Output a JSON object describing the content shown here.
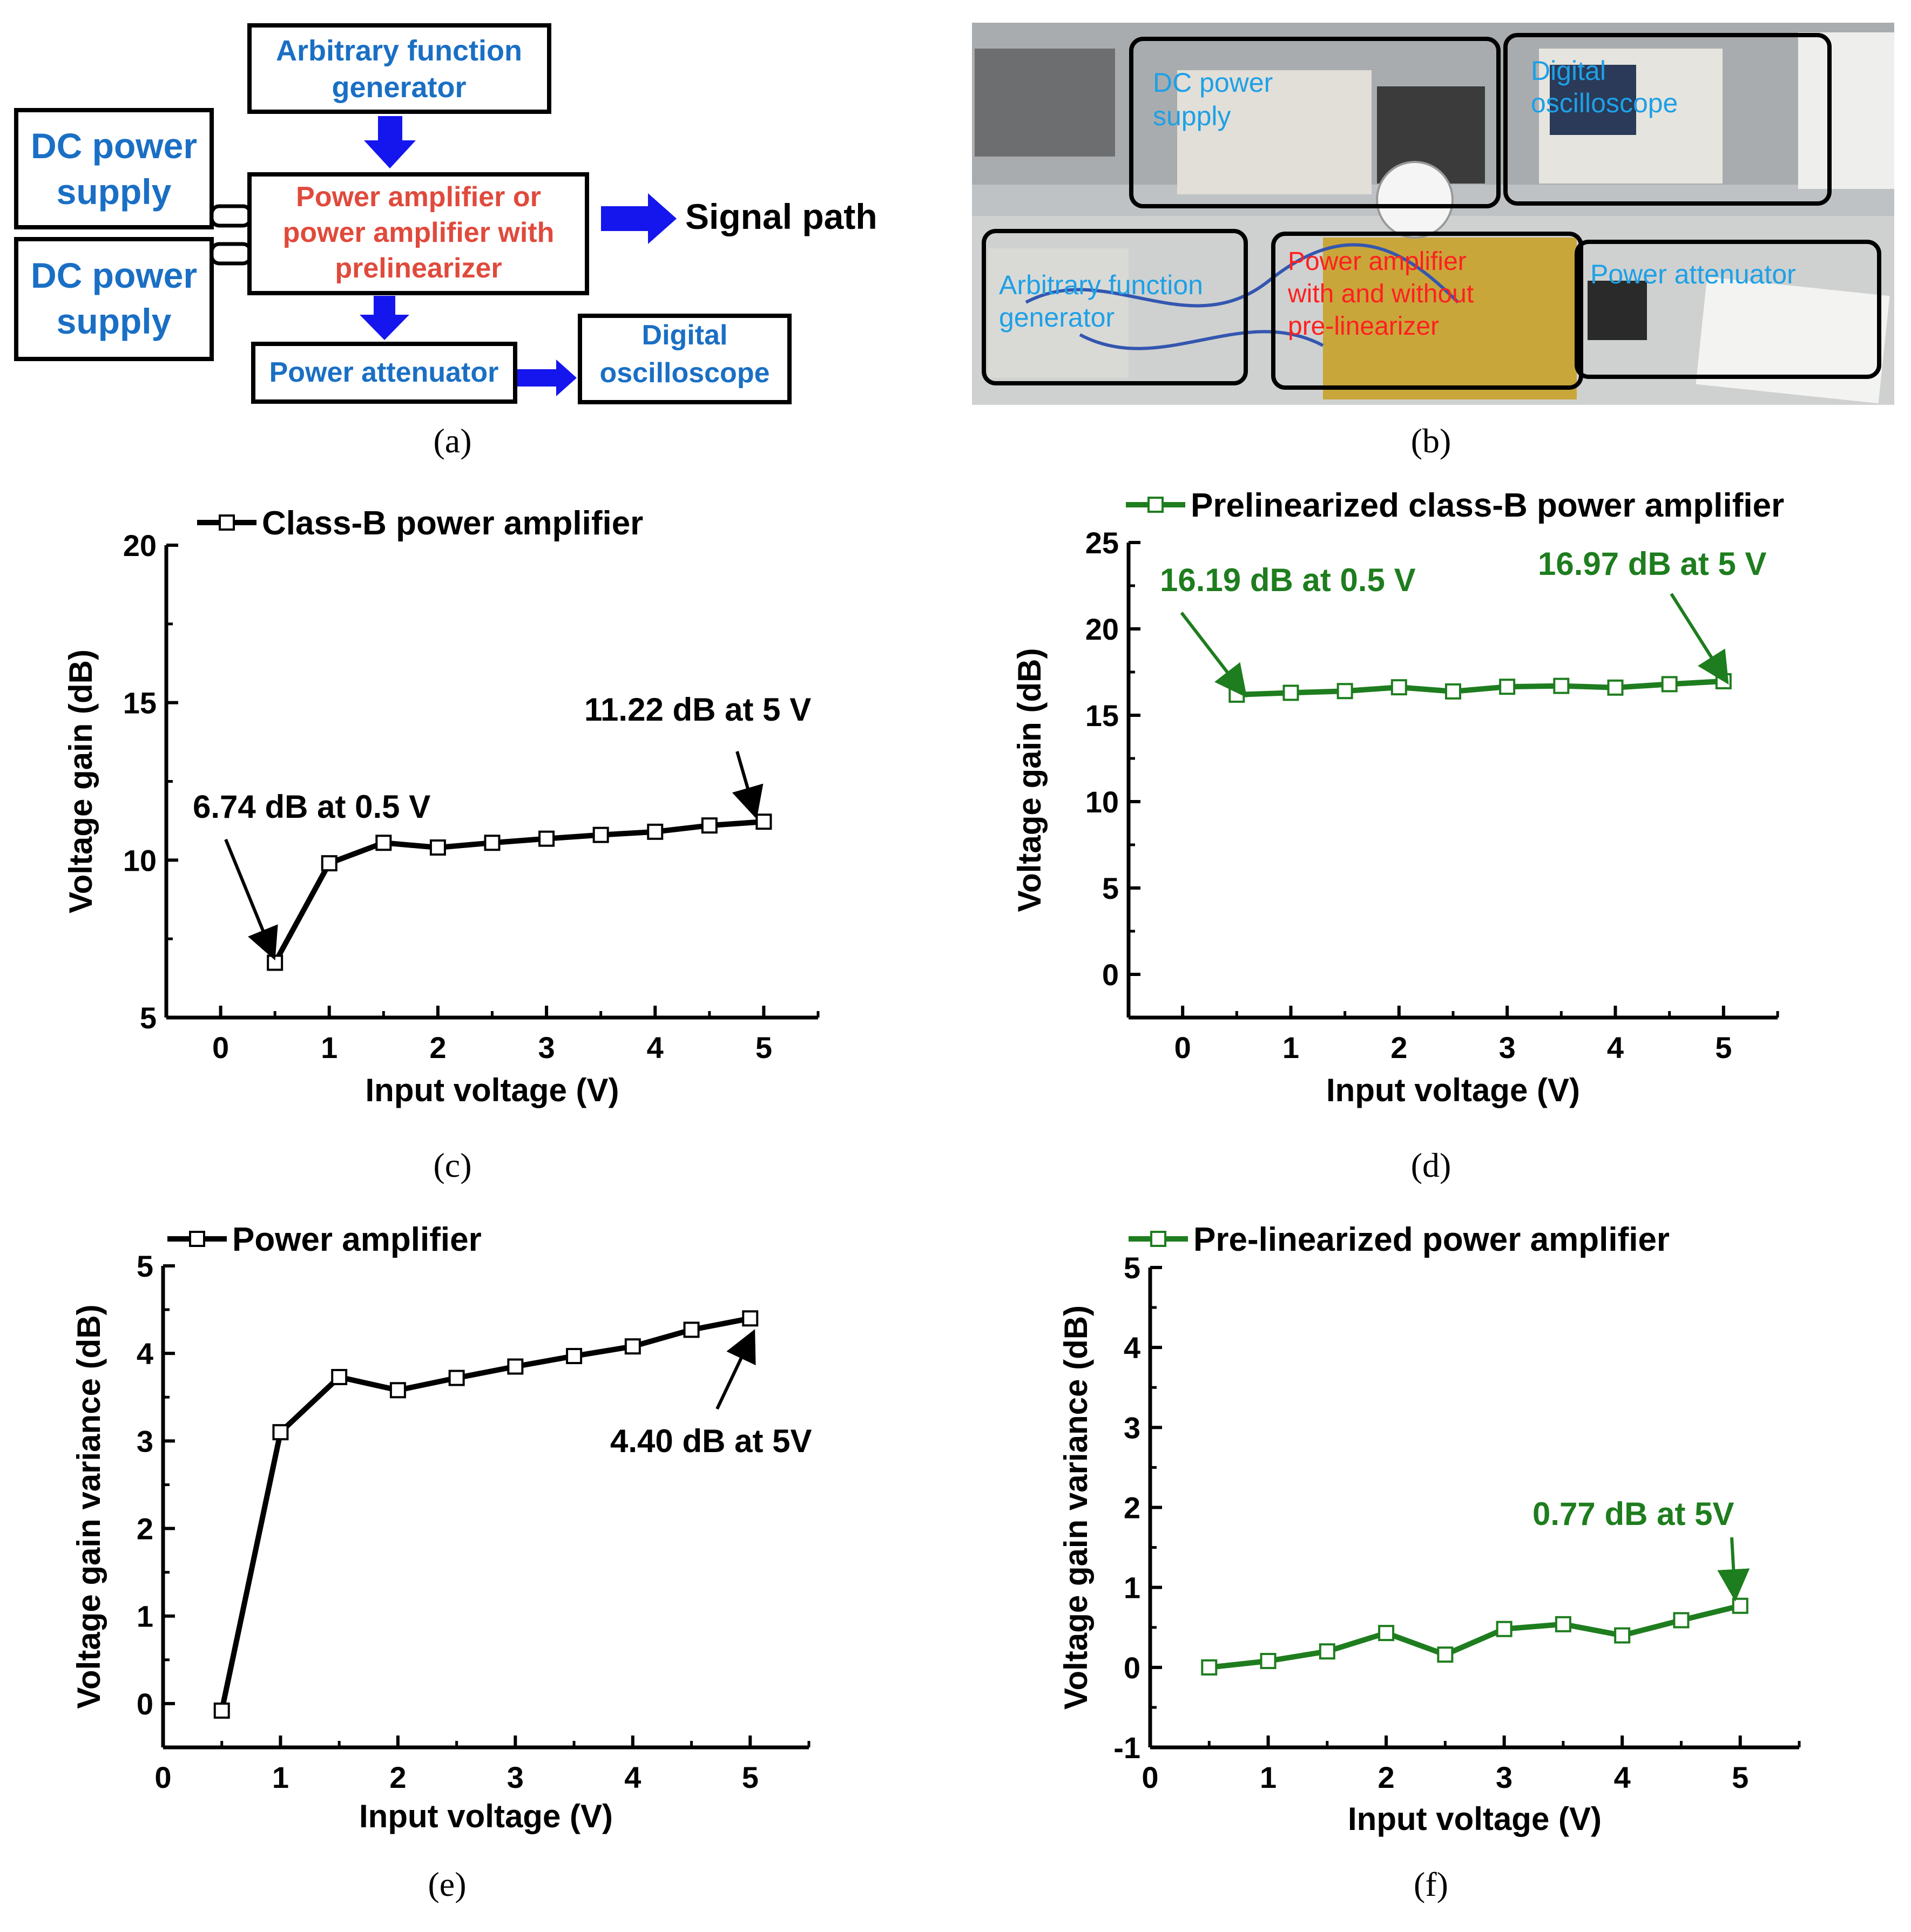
{
  "colors": {
    "black_series": "#000000",
    "green_series": "#1e7d1e",
    "blue_text": "#1a6fc4",
    "red_text": "#e04a3c",
    "arrow_blue": "#1515ee",
    "photo_label_cyan": "#1ea0e6",
    "photo_label_red": "#ff2020"
  },
  "panel_a": {
    "caption": "(a)",
    "blocks": {
      "afg_line1": "Arbitrary function",
      "afg_line2": "generator",
      "dc1_line1": "DC power",
      "dc1_line2": "supply",
      "dc2_line1": "DC power",
      "dc2_line2": "supply",
      "pa_line1": "Power amplifier or",
      "pa_line2": "power amplifier with",
      "pa_line3": "prelinearizer",
      "attenuator": "Power attenuator",
      "osc_line1": "Digital",
      "osc_line2": "oscilloscope",
      "signal_path": "Signal path"
    }
  },
  "panel_b": {
    "caption": "(b)",
    "labels": {
      "dc_line1": "DC power",
      "dc_line2": "supply",
      "osc_line1": "Digital",
      "osc_line2": "oscilloscope",
      "afg_line1": "Arbitrary function",
      "afg_line2": "generator",
      "pa_line1": "Power amplifier",
      "pa_line2": "with and without",
      "pa_line3": "pre-linearizer",
      "attenuator": "Power attenuator"
    }
  },
  "chart_data": [
    {
      "id": "c",
      "type": "line",
      "caption": "(c)",
      "legend": "Class-B power amplifier",
      "xlabel": "Input voltage (V)",
      "ylabel": "Voltage gain (dB)",
      "xlim": [
        -0.5,
        5.5
      ],
      "ylim": [
        5,
        20
      ],
      "xticks": [
        "0",
        "1",
        "2",
        "3",
        "4",
        "5"
      ],
      "yticks": [
        "5",
        "10",
        "15",
        "20"
      ],
      "x": [
        0.5,
        1.0,
        1.5,
        2.0,
        2.5,
        3.0,
        3.5,
        4.0,
        4.5,
        5.0
      ],
      "values": [
        6.74,
        9.9,
        10.55,
        10.4,
        10.55,
        10.68,
        10.8,
        10.9,
        11.1,
        11.22
      ],
      "annotations": [
        {
          "text": "6.74 dB at 0.5 V",
          "x": 0.5,
          "y": 6.74
        },
        {
          "text": "11.22 dB at 5 V",
          "x": 5.0,
          "y": 11.22
        }
      ]
    },
    {
      "id": "d",
      "type": "line",
      "caption": "(d)",
      "legend": "Prelinearized class-B power amplifier",
      "xlabel": "Input voltage (V)",
      "ylabel": "Voltage gain (dB)",
      "xlim": [
        -0.5,
        5.5
      ],
      "ylim": [
        -2.5,
        25
      ],
      "xticks": [
        "0",
        "1",
        "2",
        "3",
        "4",
        "5"
      ],
      "yticks": [
        "0",
        "5",
        "10",
        "15",
        "20",
        "25"
      ],
      "x": [
        0.5,
        1.0,
        1.5,
        2.0,
        2.5,
        3.0,
        3.5,
        4.0,
        4.5,
        5.0
      ],
      "values": [
        16.19,
        16.3,
        16.4,
        16.62,
        16.38,
        16.65,
        16.7,
        16.6,
        16.8,
        16.97
      ],
      "annotations": [
        {
          "text": "16.19 dB at 0.5 V",
          "x": 0.5,
          "y": 16.19
        },
        {
          "text": "16.97 dB at 5 V",
          "x": 5.0,
          "y": 16.97
        }
      ]
    },
    {
      "id": "e",
      "type": "line",
      "caption": "(e)",
      "legend": "Power amplifier",
      "xlabel": "Input voltage (V)",
      "ylabel": "Voltage gain variance (dB)",
      "xlim": [
        0,
        5.5
      ],
      "ylim": [
        -0.5,
        5
      ],
      "xticks": [
        "0",
        "1",
        "2",
        "3",
        "4",
        "5"
      ],
      "yticks": [
        "0",
        "1",
        "2",
        "3",
        "4",
        "5"
      ],
      "x": [
        0.5,
        1.0,
        1.5,
        2.0,
        2.5,
        3.0,
        3.5,
        4.0,
        4.5,
        5.0
      ],
      "values": [
        -0.08,
        3.1,
        3.73,
        3.58,
        3.72,
        3.85,
        3.97,
        4.08,
        4.27,
        4.4
      ],
      "annotations": [
        {
          "text": "4.40 dB at 5V",
          "x": 5.0,
          "y": 4.4
        }
      ]
    },
    {
      "id": "f",
      "type": "line",
      "caption": "(f)",
      "legend": "Pre-linearized power amplifier",
      "xlabel": "Input voltage (V)",
      "ylabel": "Voltage gain variance (dB)",
      "xlim": [
        0,
        5.5
      ],
      "ylim": [
        -1,
        5
      ],
      "xticks": [
        "0",
        "1",
        "2",
        "3",
        "4",
        "5"
      ],
      "yticks": [
        "-1",
        "0",
        "1",
        "2",
        "3",
        "4",
        "5"
      ],
      "x": [
        0.5,
        1.0,
        1.5,
        2.0,
        2.5,
        3.0,
        3.5,
        4.0,
        4.5,
        5.0
      ],
      "values": [
        0.0,
        0.08,
        0.2,
        0.43,
        0.16,
        0.48,
        0.54,
        0.4,
        0.59,
        0.77
      ],
      "annotations": [
        {
          "text": "0.77 dB at 5V",
          "x": 5.0,
          "y": 0.77
        }
      ]
    }
  ]
}
